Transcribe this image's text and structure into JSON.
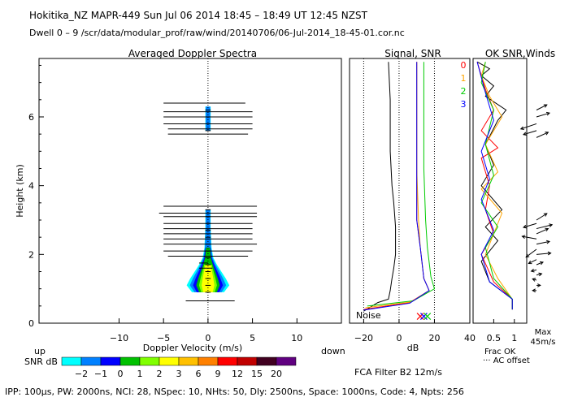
{
  "header": {
    "line1": "Hokitika_NZ   MAPR-449   Sun Jul 06 2014 18:45 – 18:49 UT 12:45 NZST",
    "line2": "Dwell   0 –   9    /scr/data/modular_prof/raw/wind/20140706/06-Jul-2014_18-45-01.cor.nc"
  },
  "footer": {
    "params": "IPP: 100µs,  PW: 2000ns,  NCI: 28,  NSpec: 10, NHts: 50,  Dly: 2500ns,  Space: 1000ns,  Code: 4,  Npts: 256",
    "filter": "FCA Filter B2 12m/s"
  },
  "colors": {
    "red": "#ff0000",
    "orange": "#ffa500",
    "green": "#00cc00",
    "blue": "#0000ff"
  },
  "chart_data": [
    {
      "type": "spectra",
      "title": "Averaged Doppler Spectra",
      "xlabel": "Doppler Velocity (m/s)",
      "ylabel": "Height (km)",
      "xlim": [
        -19,
        15
      ],
      "ylim": [
        0,
        7.7
      ],
      "xticks": [
        "-10",
        "-5",
        "0",
        "5",
        "10"
      ],
      "yticks": [
        "0",
        "2",
        "4",
        "6"
      ],
      "left_label": "up",
      "right_label": "down",
      "noise_bars": [
        {
          "h": 6.4,
          "x0": -5,
          "x1": 4.2
        },
        {
          "h": 6.15,
          "x0": -5,
          "x1": 5
        },
        {
          "h": 6.0,
          "x0": -5,
          "x1": 5
        },
        {
          "h": 5.8,
          "x0": -5,
          "x1": 5
        },
        {
          "h": 5.65,
          "x0": -4.5,
          "x1": 5
        },
        {
          "h": 5.5,
          "x0": -4.5,
          "x1": 4.5
        },
        {
          "h": 3.4,
          "x0": -5,
          "x1": 5.5
        },
        {
          "h": 3.2,
          "x0": -5.5,
          "x1": 5.5
        },
        {
          "h": 3.1,
          "x0": -5,
          "x1": 5.5
        },
        {
          "h": 2.9,
          "x0": -5,
          "x1": 5
        },
        {
          "h": 2.75,
          "x0": -5,
          "x1": 5
        },
        {
          "h": 2.6,
          "x0": -5,
          "x1": 5
        },
        {
          "h": 2.45,
          "x0": -5,
          "x1": 5
        },
        {
          "h": 2.3,
          "x0": -5,
          "x1": 5.5
        },
        {
          "h": 2.1,
          "x0": -5,
          "x1": 5
        },
        {
          "h": 1.95,
          "x0": -4.5,
          "x1": 4.5
        },
        {
          "h": 1.75,
          "x0": -1,
          "x1": 0
        },
        {
          "h": 1.6,
          "x0": -1,
          "x1": 0.5
        },
        {
          "h": 0.65,
          "x0": -2.5,
          "x1": 3
        }
      ],
      "spectrum_profile": [
        {
          "h": 0.9,
          "w": 1.8
        },
        {
          "h": 1.1,
          "w": 2.4
        },
        {
          "h": 1.3,
          "w": 2.0
        },
        {
          "h": 1.5,
          "w": 1.5
        },
        {
          "h": 1.7,
          "w": 1.0
        },
        {
          "h": 1.9,
          "w": 0.6
        },
        {
          "h": 2.2,
          "w": 0.4
        },
        {
          "h": 2.8,
          "w": 0.3
        },
        {
          "h": 3.3,
          "w": 0.3
        },
        {
          "h": 5.6,
          "w": 0.3
        },
        {
          "h": 6.0,
          "w": 0.3
        },
        {
          "h": 6.3,
          "w": 0.3
        }
      ],
      "colorbar": {
        "label": "SNR dB",
        "colors": [
          "#00ffff",
          "#0080ff",
          "#0000ff",
          "#00c000",
          "#80ff00",
          "#ffff00",
          "#ffc000",
          "#ff8000",
          "#ff0000",
          "#c00000",
          "#400020",
          "#600080"
        ],
        "ticks": [
          "−2",
          "−1",
          "0",
          "1",
          "2",
          "3",
          "6",
          "9",
          "12",
          "15",
          "20"
        ]
      }
    },
    {
      "type": "line",
      "title": "Signal, SNR",
      "xlabel": "dB",
      "xlim": [
        -28,
        40
      ],
      "ylim": [
        0,
        7.7
      ],
      "xticks": [
        "−20",
        "0",
        "20",
        "40"
      ],
      "noise_label": "Noise",
      "series": [
        {
          "name": "black",
          "color": "#000000",
          "x": [
            -20,
            -12,
            -6,
            -5,
            -4,
            -3,
            -2,
            -2,
            -3,
            -4,
            -5,
            -5,
            -6
          ],
          "y": [
            0.35,
            0.6,
            0.7,
            0.95,
            1.3,
            1.6,
            2.0,
            2.8,
            3.5,
            4.0,
            5.0,
            6.5,
            7.6
          ]
        },
        {
          "name": "0",
          "color": "#ff0000",
          "x": [
            -20,
            6,
            17,
            14,
            12,
            10,
            10,
            10,
            10
          ],
          "y": [
            0.4,
            0.6,
            0.95,
            1.3,
            2.2,
            3.0,
            4.5,
            6.0,
            7.6
          ]
        },
        {
          "name": "1",
          "color": "#ffa500",
          "x": [
            -19,
            7,
            17,
            14,
            12,
            11,
            10,
            10,
            10
          ],
          "y": [
            0.45,
            0.62,
            0.95,
            1.3,
            2.2,
            3.0,
            4.5,
            6.0,
            7.6
          ]
        },
        {
          "name": "2",
          "color": "#00cc00",
          "x": [
            -18,
            8,
            20,
            18,
            16,
            15,
            14,
            14,
            14
          ],
          "y": [
            0.5,
            0.65,
            1.0,
            1.35,
            2.2,
            3.0,
            4.5,
            6.0,
            7.6
          ]
        },
        {
          "name": "3",
          "color": "#0000ff",
          "x": [
            -20,
            6,
            17,
            14,
            12,
            10,
            10,
            10,
            10
          ],
          "y": [
            0.38,
            0.58,
            0.95,
            1.3,
            2.2,
            3.0,
            4.5,
            6.0,
            7.6
          ]
        }
      ],
      "noise_marks": [
        {
          "x": 12,
          "color": "#ff0000"
        },
        {
          "x": 14,
          "color": "#0000ff"
        },
        {
          "x": 16,
          "color": "#00cc00"
        }
      ]
    },
    {
      "type": "line",
      "title": "OK SNR,Winds",
      "xlabel": "Frac OK",
      "xlim": [
        0,
        1.3
      ],
      "ylim": [
        0,
        7.7
      ],
      "xticks": [
        "0.5",
        "1"
      ],
      "series_labels": [
        "0",
        "1",
        "2",
        "3"
      ],
      "max_label": "Max",
      "max_value": "45m/s",
      "footnote": "··· AC offset",
      "series": [
        {
          "name": "black",
          "color": "#000000",
          "x": [
            0.95,
            0.95,
            0.4,
            0.2,
            0.6,
            0.3,
            0.7,
            0.2,
            0.5,
            0.3,
            0.6,
            0.8,
            0.3,
            0.5,
            0.2,
            0.4,
            0.1
          ],
          "y": [
            0.4,
            0.7,
            1.2,
            1.8,
            2.4,
            2.8,
            3.3,
            4.0,
            4.6,
            5.2,
            5.9,
            6.2,
            6.6,
            6.9,
            7.2,
            7.4,
            7.6
          ]
        },
        {
          "name": "0",
          "color": "#ff0000",
          "x": [
            0.95,
            0.95,
            0.5,
            0.2,
            0.5,
            0.3,
            0.4,
            0.2,
            0.6,
            0.2,
            0.5,
            0.3,
            0.1
          ],
          "y": [
            0.4,
            0.7,
            1.2,
            2.0,
            2.6,
            3.3,
            4.0,
            4.8,
            5.1,
            5.6,
            6.2,
            6.8,
            7.6
          ]
        },
        {
          "name": "1",
          "color": "#ffa500",
          "x": [
            0.95,
            0.95,
            0.6,
            0.3,
            0.7,
            0.2,
            0.6,
            0.3,
            0.7,
            0.4,
            0.2,
            0.3
          ],
          "y": [
            0.4,
            0.7,
            1.3,
            2.0,
            3.2,
            3.9,
            4.4,
            5.2,
            6.0,
            6.6,
            7.2,
            7.6
          ]
        },
        {
          "name": "2",
          "color": "#00cc00",
          "x": [
            0.95,
            0.95,
            0.5,
            0.3,
            0.6,
            0.2,
            0.5,
            0.3,
            0.5,
            0.2,
            0.3
          ],
          "y": [
            0.4,
            0.7,
            1.3,
            2.2,
            2.8,
            3.5,
            4.3,
            5.2,
            6.2,
            7.0,
            7.6
          ]
        },
        {
          "name": "3",
          "color": "#0000ff",
          "x": [
            0.95,
            0.95,
            0.4,
            0.2,
            0.5,
            0.2,
            0.4,
            0.2,
            0.5,
            0.3,
            0.1
          ],
          "y": [
            0.4,
            0.7,
            1.2,
            2.0,
            2.7,
            3.6,
            4.2,
            5.0,
            5.9,
            6.7,
            7.6
          ]
        }
      ],
      "wind_barbs": [
        {
          "h": 6.2,
          "u": 8,
          "v": 4
        },
        {
          "h": 6.0,
          "u": 10,
          "v": 3
        },
        {
          "h": 5.8,
          "u": -12,
          "v": -4
        },
        {
          "h": 5.6,
          "u": -10,
          "v": -3
        },
        {
          "h": 5.4,
          "u": 9,
          "v": 4
        },
        {
          "h": 3.0,
          "u": 8,
          "v": 5
        },
        {
          "h": 2.9,
          "u": -10,
          "v": -3
        },
        {
          "h": 2.75,
          "u": 12,
          "v": 3
        },
        {
          "h": 2.6,
          "u": 9,
          "v": 4
        },
        {
          "h": 2.45,
          "u": -11,
          "v": 2
        },
        {
          "h": 2.3,
          "u": 10,
          "v": 2
        },
        {
          "h": 2.15,
          "u": -8,
          "v": -6
        },
        {
          "h": 2.0,
          "u": 11,
          "v": 1
        },
        {
          "h": 1.85,
          "u": -6,
          "v": -3
        },
        {
          "h": 1.7,
          "u": 5,
          "v": 2
        },
        {
          "h": 1.55,
          "u": -4,
          "v": -1
        },
        {
          "h": 1.4,
          "u": 4,
          "v": 1
        },
        {
          "h": 1.25,
          "u": -3,
          "v": 1
        },
        {
          "h": 1.1,
          "u": 3,
          "v": 0
        },
        {
          "h": 0.95,
          "u": -3,
          "v": 0
        }
      ]
    }
  ]
}
